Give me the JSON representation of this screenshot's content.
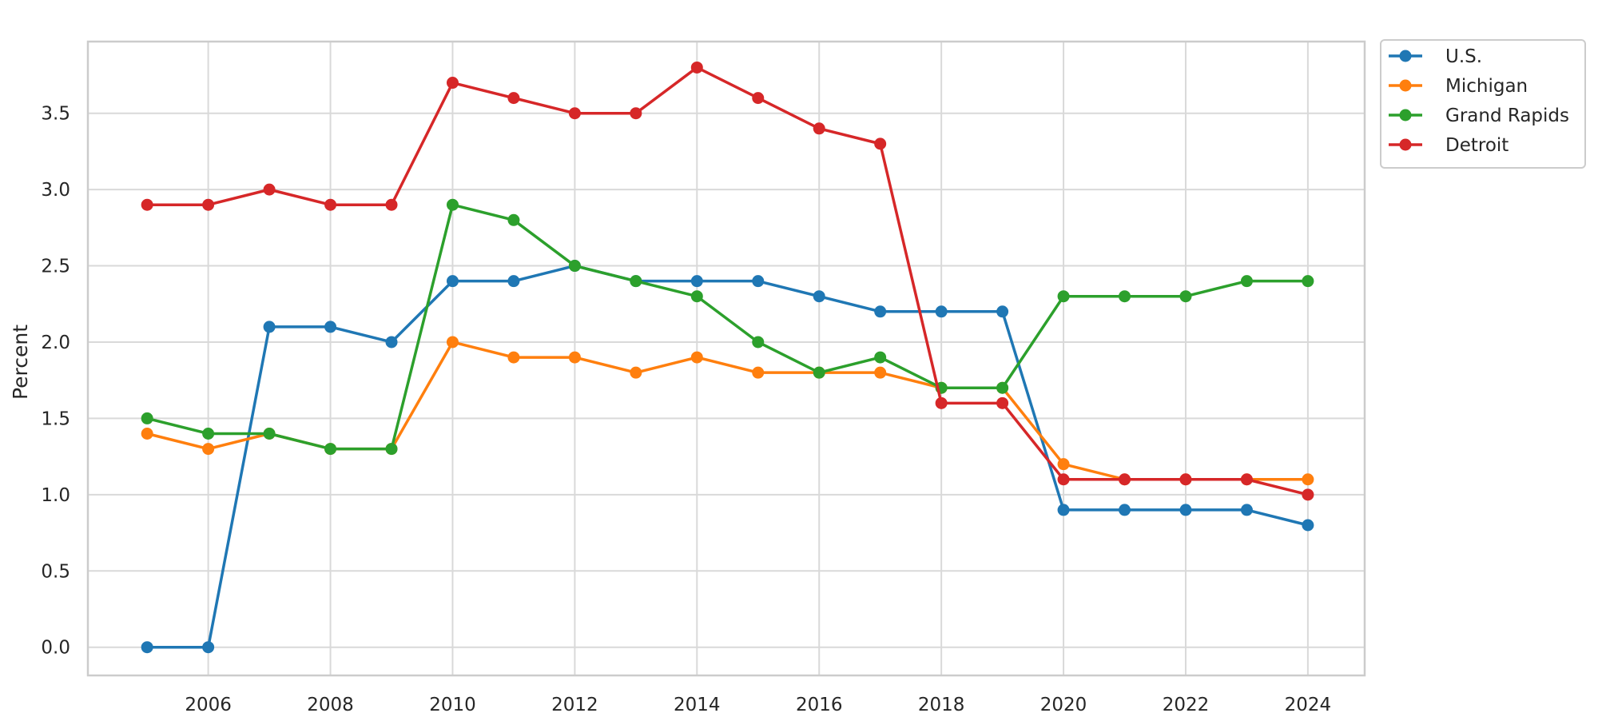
{
  "chart_data": {
    "type": "line",
    "title": "",
    "xlabel": "",
    "ylabel": "Percent",
    "x": [
      2005,
      2006,
      2007,
      2008,
      2009,
      2010,
      2011,
      2012,
      2013,
      2014,
      2015,
      2016,
      2017,
      2018,
      2019,
      2020,
      2021,
      2022,
      2023,
      2024
    ],
    "xlim": [
      2004.03,
      2024.93
    ],
    "ylim": [
      -0.185,
      3.97
    ],
    "x_ticks": [
      "2006",
      "2008",
      "2010",
      "2012",
      "2014",
      "2016",
      "2018",
      "2020",
      "2022",
      "2024"
    ],
    "y_ticks": [
      "0.0",
      "0.5",
      "1.0",
      "1.5",
      "2.0",
      "2.5",
      "3.0",
      "3.5"
    ],
    "grid": true,
    "legend_position": "outside-top-right",
    "series": [
      {
        "name": "U.S.",
        "color": "#1f77b4",
        "values": [
          0.0,
          0.0,
          2.1,
          2.1,
          2.0,
          2.4,
          2.4,
          2.5,
          2.4,
          2.4,
          2.4,
          2.3,
          2.2,
          2.2,
          2.2,
          0.9,
          0.9,
          0.9,
          0.9,
          0.8
        ]
      },
      {
        "name": "Michigan",
        "color": "#ff7f0e",
        "values": [
          1.4,
          1.3,
          1.4,
          1.3,
          1.3,
          2.0,
          1.9,
          1.9,
          1.8,
          1.9,
          1.8,
          1.8,
          1.8,
          1.7,
          1.7,
          1.2,
          1.1,
          1.1,
          1.1,
          1.1
        ]
      },
      {
        "name": "Grand Rapids",
        "color": "#2ca02c",
        "values": [
          1.5,
          1.4,
          1.4,
          1.3,
          1.3,
          2.9,
          2.8,
          2.5,
          2.4,
          2.3,
          2.0,
          1.8,
          1.9,
          1.7,
          1.7,
          2.3,
          2.3,
          2.3,
          2.4,
          2.4
        ]
      },
      {
        "name": "Detroit",
        "color": "#d62728",
        "values": [
          2.9,
          2.9,
          3.0,
          2.9,
          2.9,
          3.7,
          3.6,
          3.5,
          3.5,
          3.8,
          3.6,
          3.4,
          3.3,
          1.6,
          1.6,
          1.1,
          1.1,
          1.1,
          1.1,
          1.0
        ]
      }
    ]
  },
  "style": {
    "grid_color": "#d9d9d9",
    "frame_color": "#cccccc",
    "text_color": "#262626",
    "legend_border_color": "#cccccc"
  }
}
